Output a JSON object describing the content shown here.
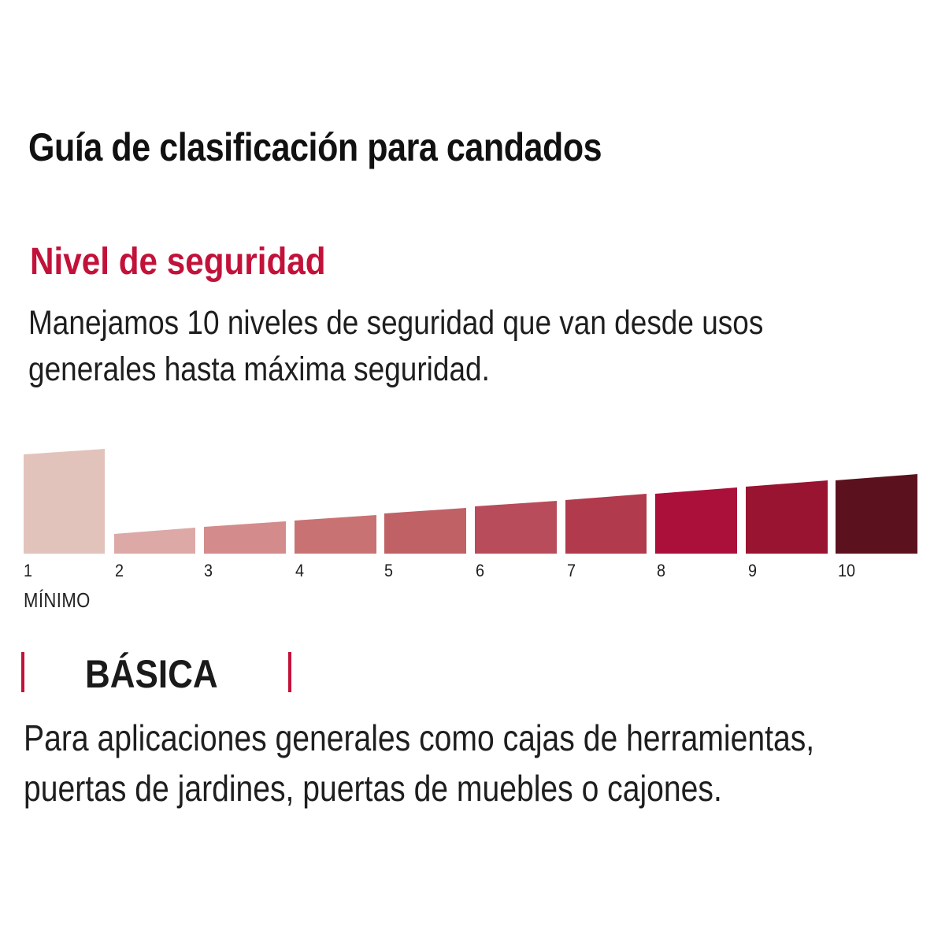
{
  "header": {
    "title": "Guía de clasificación para candados"
  },
  "security": {
    "heading": "Nivel de seguridad",
    "description": "Manejamos 10 niveles de seguridad que van desde usos generales hasta máxima seguridad.",
    "accent_color": "#c2123a"
  },
  "levels": {
    "items": [
      {
        "label": "1",
        "color": "#e2c3bb",
        "active": true
      },
      {
        "label": "2",
        "color": "#dca9a7"
      },
      {
        "label": "3",
        "color": "#d38c8b"
      },
      {
        "label": "4",
        "color": "#c97273"
      },
      {
        "label": "5",
        "color": "#c06166"
      },
      {
        "label": "6",
        "color": "#b84c5a"
      },
      {
        "label": "7",
        "color": "#b13a4d"
      },
      {
        "label": "8",
        "color": "#ab103a"
      },
      {
        "label": "9",
        "color": "#991431"
      },
      {
        "label": "10",
        "color": "#5c121e"
      }
    ],
    "selected_caption": "MÍNIMO",
    "selected_level": 1
  },
  "category": {
    "name": "BÁSICA",
    "description": "Para aplicaciones generales como cajas de herramientas, puertas de jardines, puertas de muebles o cajones."
  }
}
